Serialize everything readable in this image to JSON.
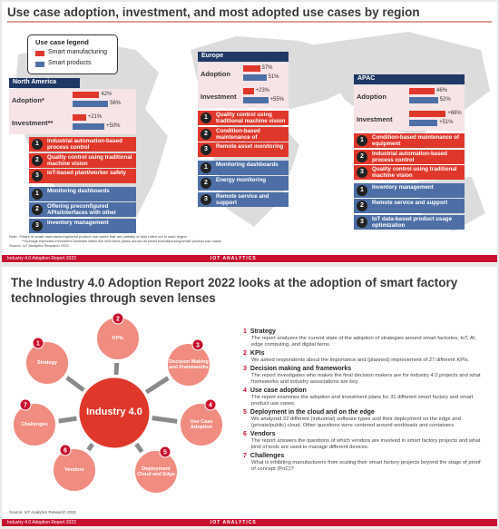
{
  "top_slide": {
    "title": "Use case adoption, investment, and most adopted use cases by region",
    "legend": {
      "title": "Use case legend",
      "items": [
        "Smart manufacturing",
        "Smart products"
      ]
    },
    "regions": [
      {
        "name": "North America",
        "metrics": [
          {
            "label": "Adoption*",
            "values": [
              {
                "value": 42,
                "label": "42%"
              },
              {
                "value": 56,
                "label": "56%"
              }
            ]
          },
          {
            "label": "Investment**",
            "values": [
              {
                "value": 21,
                "label": "+21%"
              },
              {
                "value": 50,
                "label": "+50%"
              }
            ]
          }
        ],
        "manufacturing": [
          {
            "rank": 1,
            "text": "Industrial automation-based process control"
          },
          {
            "rank": 2,
            "text": "Quality control using traditional machine vision"
          },
          {
            "rank": 3,
            "text": "IoT-based plant/worker safety"
          }
        ],
        "products": [
          {
            "rank": 1,
            "text": "Monitoring dashboards"
          },
          {
            "rank": 2,
            "text": "Offering preconfigured APIs/interfaces with other assets"
          },
          {
            "rank": 3,
            "text": "Inventory management"
          }
        ]
      },
      {
        "name": "Europe",
        "metrics": [
          {
            "label": "Adoption",
            "values": [
              {
                "value": 37,
                "label": "37%"
              },
              {
                "value": 51,
                "label": "51%"
              }
            ]
          },
          {
            "label": "Investment",
            "values": [
              {
                "value": 23,
                "label": "+23%"
              },
              {
                "value": 55,
                "label": "+55%"
              }
            ]
          }
        ],
        "manufacturing": [
          {
            "rank": 1,
            "text": "Quality control using traditional machine vision"
          },
          {
            "rank": 2,
            "text": "Condition-based maintenance of equipment"
          },
          {
            "rank": 3,
            "text": "Remote asset monitoring"
          }
        ],
        "products": [
          {
            "rank": 1,
            "text": "Monitoring dashboards"
          },
          {
            "rank": 2,
            "text": "Energy monitoring"
          },
          {
            "rank": 3,
            "text": "Remote service and support"
          }
        ]
      },
      {
        "name": "APAC",
        "metrics": [
          {
            "label": "Adoption",
            "values": [
              {
                "value": 46,
                "label": "46%"
              },
              {
                "value": 52,
                "label": "52%"
              }
            ]
          },
          {
            "label": "Investment",
            "values": [
              {
                "value": 66,
                "label": "+66%"
              },
              {
                "value": 51,
                "label": "+51%"
              }
            ]
          }
        ],
        "manufacturing": [
          {
            "rank": 1,
            "text": "Condition-based maintenance of equipment"
          },
          {
            "rank": 2,
            "text": "Industrial automation-based process control"
          },
          {
            "rank": 3,
            "text": "Quality control using traditional machine vision"
          }
        ],
        "products": [
          {
            "rank": 1,
            "text": "Inventory management"
          },
          {
            "rank": 2,
            "text": "Remote service and support"
          },
          {
            "rank": 3,
            "text": "IoT data-based product usage optimization"
          }
        ]
      }
    ],
    "notes": [
      "Note: *Share of smart manufacturing/smart product use cases that are partially or fully rolled out in each region",
      "**Average expected investment increase within the next three years across all smart manufacturing/smart product use cases",
      "Source: IoT Analytics Research 2022"
    ],
    "footer": {
      "report": "Industry 4.0 Adoption Report 2022",
      "brand": "IOT ANALYTICS"
    }
  },
  "bottom_slide": {
    "title": "The Industry 4.0 Adoption Report 2022 looks at the adoption of smart factory technologies through seven lenses",
    "center": "Industry 4.0",
    "lenses": [
      {
        "number": 1,
        "label": "Strategy",
        "heading": "Strategy",
        "text": "The report analyzes the current state of the adoption of strategies around smart factories, IoT, AI, edge computing, and digital twins."
      },
      {
        "number": 2,
        "label": "KPIs",
        "heading": "KPIs",
        "text": "We asked respondents about the importance and (planned) improvement of 27 different KPIs."
      },
      {
        "number": 3,
        "label": "Decision Making and Frameworks",
        "heading": "Decision making and frameworks",
        "text": "The report investigates who makes the final decision makers are for Industry 4.0 projects and what frameworks and industry associations are key."
      },
      {
        "number": 4,
        "label": "Use Case Adoption",
        "heading": "Use case adoption",
        "text": "The report examines the adoption and investment plans for 31 different smart factory and smart product use cases."
      },
      {
        "number": 5,
        "label": "Deployment Cloud and Edge",
        "heading": "Deployment in the cloud and on the edge",
        "text": "We analyzed 22 different (industrial) software types and their deployment on the edge and (private/public) cloud. Other questions were centered around workloads and containers."
      },
      {
        "number": 6,
        "label": "Vendors",
        "heading": "Vendors",
        "text": "The report answers the questions of which vendors are involved in smart factory projects and what kind of tools are used to manage different devices."
      },
      {
        "number": 7,
        "label": "Challenges",
        "heading": "Challenges",
        "text": "What is inhibiting manufacturers from scaling their smart factory projects beyond the stage of proof of concept (PoC)?"
      }
    ],
    "source": "Source: IoT Analytics Research 2022",
    "footer": {
      "report": "Industry 4.0 Adoption Report 2022",
      "brand": "IOT ANALYTICS"
    }
  }
}
